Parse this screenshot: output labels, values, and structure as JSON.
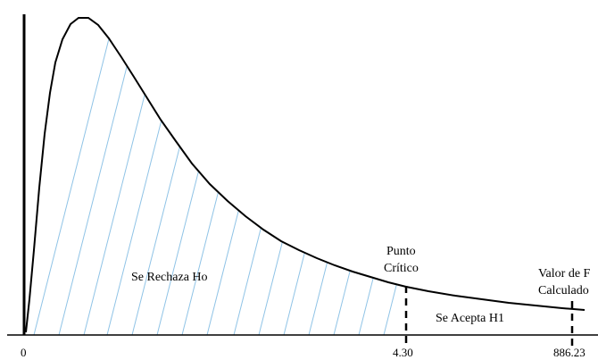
{
  "diagram": {
    "kind": "F distribution hypothesis test",
    "regions": {
      "reject_label": "Se Rechaza Ho",
      "accept_label": "Se Acepta H1"
    },
    "critical": {
      "label_line1": "Punto",
      "label_line2": "Crítico",
      "value": 4.3,
      "tick_label": "4.30"
    },
    "computed": {
      "label_line1": "Valor de F",
      "label_line2": "Calculado",
      "value": 886.23,
      "tick_label": "886.23"
    },
    "origin_tick_label": "0",
    "colors": {
      "curve": "#000000",
      "hatch": "#8fc3e6",
      "axis": "#000000"
    }
  }
}
